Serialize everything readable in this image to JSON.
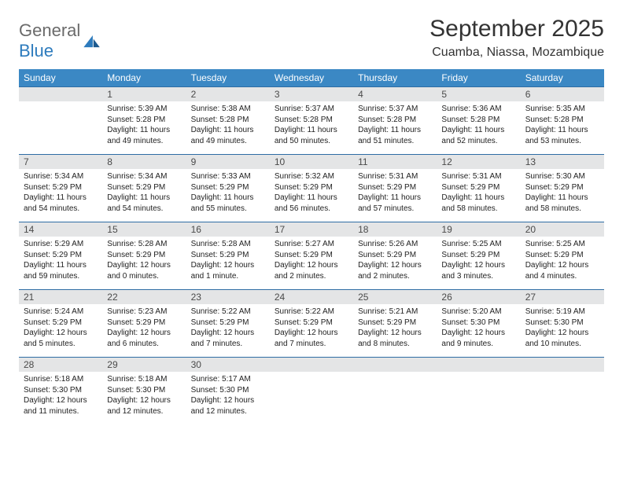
{
  "brand": {
    "name_a": "General",
    "name_b": "Blue"
  },
  "title": "September 2025",
  "location": "Cuamba, Niassa, Mozambique",
  "colors": {
    "header_bg": "#3b88c4",
    "daynum_bg": "#e4e5e6",
    "week_border": "#2e6da4",
    "text": "#222222",
    "logo_gray": "#6a6a6a",
    "logo_blue": "#2d7bbd"
  },
  "dow": [
    "Sunday",
    "Monday",
    "Tuesday",
    "Wednesday",
    "Thursday",
    "Friday",
    "Saturday"
  ],
  "weeks": [
    [
      null,
      {
        "n": "1",
        "sr": "Sunrise: 5:39 AM",
        "ss": "Sunset: 5:28 PM",
        "dl": "Daylight: 11 hours and 49 minutes."
      },
      {
        "n": "2",
        "sr": "Sunrise: 5:38 AM",
        "ss": "Sunset: 5:28 PM",
        "dl": "Daylight: 11 hours and 49 minutes."
      },
      {
        "n": "3",
        "sr": "Sunrise: 5:37 AM",
        "ss": "Sunset: 5:28 PM",
        "dl": "Daylight: 11 hours and 50 minutes."
      },
      {
        "n": "4",
        "sr": "Sunrise: 5:37 AM",
        "ss": "Sunset: 5:28 PM",
        "dl": "Daylight: 11 hours and 51 minutes."
      },
      {
        "n": "5",
        "sr": "Sunrise: 5:36 AM",
        "ss": "Sunset: 5:28 PM",
        "dl": "Daylight: 11 hours and 52 minutes."
      },
      {
        "n": "6",
        "sr": "Sunrise: 5:35 AM",
        "ss": "Sunset: 5:28 PM",
        "dl": "Daylight: 11 hours and 53 minutes."
      }
    ],
    [
      {
        "n": "7",
        "sr": "Sunrise: 5:34 AM",
        "ss": "Sunset: 5:29 PM",
        "dl": "Daylight: 11 hours and 54 minutes."
      },
      {
        "n": "8",
        "sr": "Sunrise: 5:34 AM",
        "ss": "Sunset: 5:29 PM",
        "dl": "Daylight: 11 hours and 54 minutes."
      },
      {
        "n": "9",
        "sr": "Sunrise: 5:33 AM",
        "ss": "Sunset: 5:29 PM",
        "dl": "Daylight: 11 hours and 55 minutes."
      },
      {
        "n": "10",
        "sr": "Sunrise: 5:32 AM",
        "ss": "Sunset: 5:29 PM",
        "dl": "Daylight: 11 hours and 56 minutes."
      },
      {
        "n": "11",
        "sr": "Sunrise: 5:31 AM",
        "ss": "Sunset: 5:29 PM",
        "dl": "Daylight: 11 hours and 57 minutes."
      },
      {
        "n": "12",
        "sr": "Sunrise: 5:31 AM",
        "ss": "Sunset: 5:29 PM",
        "dl": "Daylight: 11 hours and 58 minutes."
      },
      {
        "n": "13",
        "sr": "Sunrise: 5:30 AM",
        "ss": "Sunset: 5:29 PM",
        "dl": "Daylight: 11 hours and 58 minutes."
      }
    ],
    [
      {
        "n": "14",
        "sr": "Sunrise: 5:29 AM",
        "ss": "Sunset: 5:29 PM",
        "dl": "Daylight: 11 hours and 59 minutes."
      },
      {
        "n": "15",
        "sr": "Sunrise: 5:28 AM",
        "ss": "Sunset: 5:29 PM",
        "dl": "Daylight: 12 hours and 0 minutes."
      },
      {
        "n": "16",
        "sr": "Sunrise: 5:28 AM",
        "ss": "Sunset: 5:29 PM",
        "dl": "Daylight: 12 hours and 1 minute."
      },
      {
        "n": "17",
        "sr": "Sunrise: 5:27 AM",
        "ss": "Sunset: 5:29 PM",
        "dl": "Daylight: 12 hours and 2 minutes."
      },
      {
        "n": "18",
        "sr": "Sunrise: 5:26 AM",
        "ss": "Sunset: 5:29 PM",
        "dl": "Daylight: 12 hours and 2 minutes."
      },
      {
        "n": "19",
        "sr": "Sunrise: 5:25 AM",
        "ss": "Sunset: 5:29 PM",
        "dl": "Daylight: 12 hours and 3 minutes."
      },
      {
        "n": "20",
        "sr": "Sunrise: 5:25 AM",
        "ss": "Sunset: 5:29 PM",
        "dl": "Daylight: 12 hours and 4 minutes."
      }
    ],
    [
      {
        "n": "21",
        "sr": "Sunrise: 5:24 AM",
        "ss": "Sunset: 5:29 PM",
        "dl": "Daylight: 12 hours and 5 minutes."
      },
      {
        "n": "22",
        "sr": "Sunrise: 5:23 AM",
        "ss": "Sunset: 5:29 PM",
        "dl": "Daylight: 12 hours and 6 minutes."
      },
      {
        "n": "23",
        "sr": "Sunrise: 5:22 AM",
        "ss": "Sunset: 5:29 PM",
        "dl": "Daylight: 12 hours and 7 minutes."
      },
      {
        "n": "24",
        "sr": "Sunrise: 5:22 AM",
        "ss": "Sunset: 5:29 PM",
        "dl": "Daylight: 12 hours and 7 minutes."
      },
      {
        "n": "25",
        "sr": "Sunrise: 5:21 AM",
        "ss": "Sunset: 5:29 PM",
        "dl": "Daylight: 12 hours and 8 minutes."
      },
      {
        "n": "26",
        "sr": "Sunrise: 5:20 AM",
        "ss": "Sunset: 5:30 PM",
        "dl": "Daylight: 12 hours and 9 minutes."
      },
      {
        "n": "27",
        "sr": "Sunrise: 5:19 AM",
        "ss": "Sunset: 5:30 PM",
        "dl": "Daylight: 12 hours and 10 minutes."
      }
    ],
    [
      {
        "n": "28",
        "sr": "Sunrise: 5:18 AM",
        "ss": "Sunset: 5:30 PM",
        "dl": "Daylight: 12 hours and 11 minutes."
      },
      {
        "n": "29",
        "sr": "Sunrise: 5:18 AM",
        "ss": "Sunset: 5:30 PM",
        "dl": "Daylight: 12 hours and 12 minutes."
      },
      {
        "n": "30",
        "sr": "Sunrise: 5:17 AM",
        "ss": "Sunset: 5:30 PM",
        "dl": "Daylight: 12 hours and 12 minutes."
      },
      null,
      null,
      null,
      null
    ]
  ]
}
